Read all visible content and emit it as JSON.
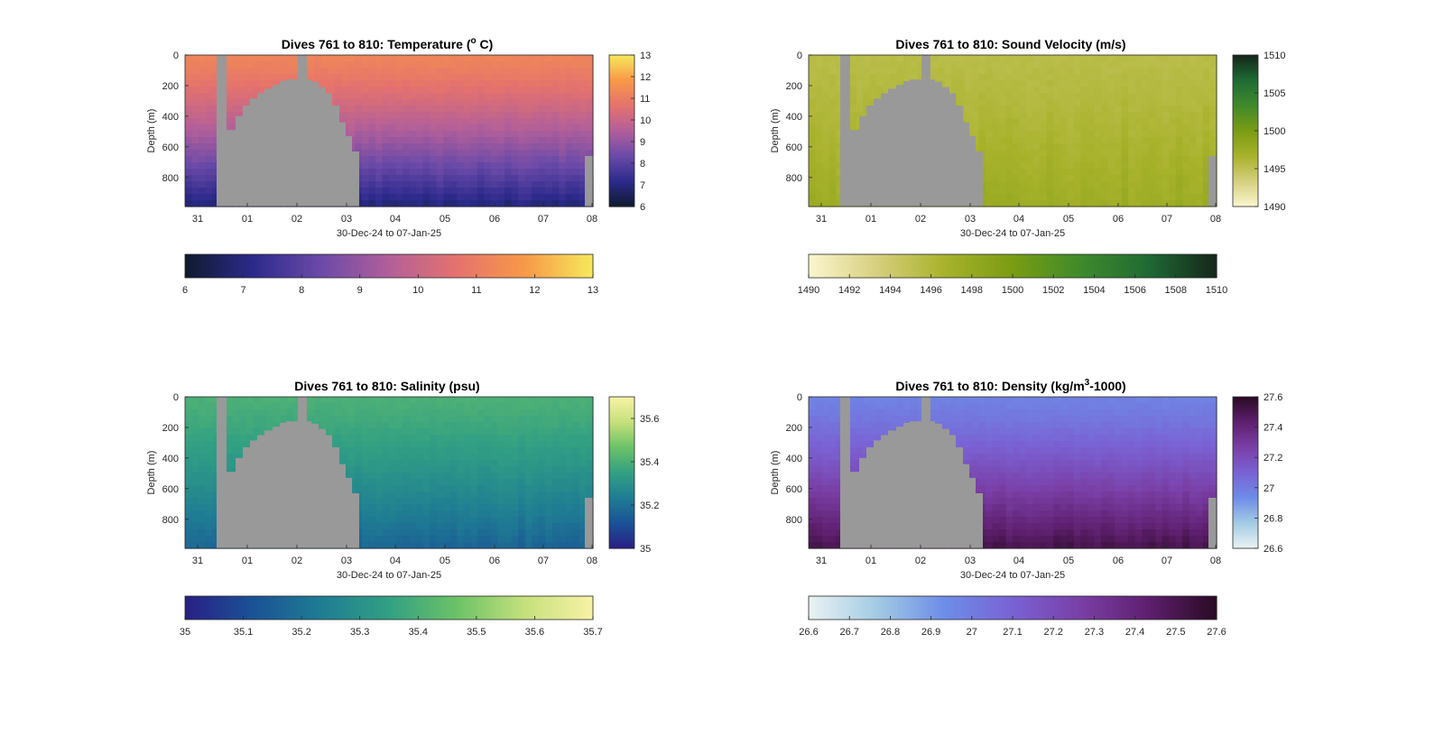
{
  "chart_data": [
    {
      "type": "heatmap",
      "title_prefix": "Dives 761 to 810: Temperature (",
      "title_sup": "o",
      "title_suffix": " C)",
      "xlabel": "30-Dec-24 to 07-Jan-25",
      "ylabel": "Depth (m)",
      "x_tick_labels": [
        "31",
        "01",
        "02",
        "03",
        "04",
        "05",
        "06",
        "07",
        "08"
      ],
      "y_tick_labels": [
        "0",
        "200",
        "400",
        "600",
        "800"
      ],
      "ylim": [
        0,
        990
      ],
      "colormap": [
        "#0f1b2e",
        "#2c2a8c",
        "#6b4aa8",
        "#b25f9a",
        "#e5726d",
        "#f79948",
        "#f6e95c"
      ],
      "clim": [
        6,
        13
      ],
      "surface_value": 11.2,
      "deep_value": 7.0,
      "side_colorbar_ticks": [
        "6",
        "7",
        "8",
        "9",
        "10",
        "11",
        "12",
        "13"
      ],
      "bottom_colorbar_ticks": [
        "6",
        "7",
        "8",
        "9",
        "10",
        "11",
        "12",
        "13"
      ]
    },
    {
      "type": "heatmap",
      "title_prefix": "Dives 761 to 810: Sound Velocity (m/s)",
      "title_sup": "",
      "title_suffix": "",
      "xlabel": "30-Dec-24 to 07-Jan-25",
      "ylabel": "Depth (m)",
      "x_tick_labels": [
        "31",
        "01",
        "02",
        "03",
        "04",
        "05",
        "06",
        "07",
        "08"
      ],
      "y_tick_labels": [
        "0",
        "200",
        "400",
        "600",
        "800"
      ],
      "ylim": [
        0,
        990
      ],
      "colormap": [
        "#fbf6cf",
        "#d6cf7e",
        "#a8b22b",
        "#7a9c13",
        "#3f8a2b",
        "#1f6a34",
        "#15261a"
      ],
      "clim": [
        1490,
        1510
      ],
      "surface_value": 1495.5,
      "deep_value": 1497.5,
      "side_colorbar_ticks": [
        "1490",
        "1495",
        "1500",
        "1505",
        "1510"
      ],
      "bottom_colorbar_ticks": [
        "1490",
        "1492",
        "1494",
        "1496",
        "1498",
        "1500",
        "1502",
        "1504",
        "1506",
        "1508",
        "1510"
      ]
    },
    {
      "type": "heatmap",
      "title_prefix": "Dives 761 to 810: Salinity (psu)",
      "title_sup": "",
      "title_suffix": "",
      "xlabel": "30-Dec-24 to 07-Jan-25",
      "ylabel": "Depth (m)",
      "x_tick_labels": [
        "31",
        "01",
        "02",
        "03",
        "04",
        "05",
        "06",
        "07",
        "08"
      ],
      "y_tick_labels": [
        "0",
        "200",
        "400",
        "600",
        "800"
      ],
      "ylim": [
        0,
        990
      ],
      "colormap": [
        "#2a1f86",
        "#1a5296",
        "#1f7d93",
        "#32a083",
        "#6cc267",
        "#c6e07c",
        "#f8f3a6"
      ],
      "clim": [
        35.0,
        35.7
      ],
      "surface_value": 35.4,
      "deep_value": 35.17,
      "side_colorbar_ticks": [
        "35",
        "35.2",
        "35.4",
        "35.6"
      ],
      "bottom_colorbar_ticks": [
        "35",
        "35.1",
        "35.2",
        "35.3",
        "35.4",
        "35.5",
        "35.6",
        "35.7"
      ]
    },
    {
      "type": "heatmap",
      "title_prefix": "Dives 761 to 810: Density (kg/m",
      "title_sup": "3",
      "title_suffix": "-1000)",
      "xlabel": "30-Dec-24 to 07-Jan-25",
      "ylabel": "Depth (m)",
      "x_tick_labels": [
        "31",
        "01",
        "02",
        "03",
        "04",
        "05",
        "06",
        "07",
        "08"
      ],
      "y_tick_labels": [
        "0",
        "200",
        "400",
        "600",
        "800"
      ],
      "ylim": [
        0,
        990
      ],
      "colormap": [
        "#eaf2f3",
        "#a3cbe4",
        "#6d8de8",
        "#7a62d4",
        "#7a3fa6",
        "#5e1f6e",
        "#2a0a24"
      ],
      "clim": [
        26.6,
        27.6
      ],
      "surface_value": 26.98,
      "deep_value": 27.5,
      "side_colorbar_ticks": [
        "26.6",
        "26.8",
        "27",
        "27.2",
        "27.4",
        "27.6"
      ],
      "bottom_colorbar_ticks": [
        "26.6",
        "26.7",
        "26.8",
        "26.9",
        "27",
        "27.1",
        "27.2",
        "27.3",
        "27.4",
        "27.5",
        "27.6"
      ]
    }
  ]
}
